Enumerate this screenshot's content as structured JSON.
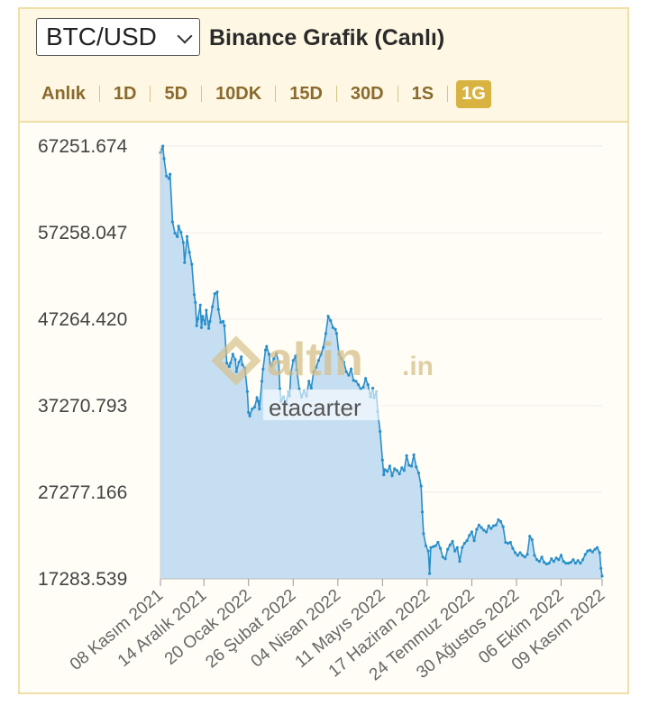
{
  "header": {
    "pair": "BTC/USD",
    "title": "Binance Grafik (Canlı)",
    "tabs": [
      {
        "label": "Anlık",
        "active": false
      },
      {
        "label": "1D",
        "active": false
      },
      {
        "label": "5D",
        "active": false
      },
      {
        "label": "10DK",
        "active": false
      },
      {
        "label": "15D",
        "active": false
      },
      {
        "label": "30D",
        "active": false
      },
      {
        "label": "1S",
        "active": false
      },
      {
        "label": "1G",
        "active": true
      }
    ]
  },
  "watermark": {
    "logo_text": "altin",
    "logo_suffix": ".in",
    "user_text": "etacarter",
    "logo_color": "#d6c08a"
  },
  "colors": {
    "line": "#2a8fc9",
    "fill": "#c5def2",
    "grid": "#ececec",
    "active_tab": "#d9b341"
  },
  "chart_data": {
    "type": "area",
    "y_ticks": [
      "67251.674",
      "57258.047",
      "47264.420",
      "37270.793",
      "27277.166",
      "17283.539"
    ],
    "ylim": [
      17283.539,
      67251.674
    ],
    "x_ticks": [
      {
        "label": "08 Kasım 2021",
        "day": 0
      },
      {
        "label": "14 Aralık 2021",
        "day": 36
      },
      {
        "label": "20 Ocak 2022",
        "day": 73
      },
      {
        "label": "26 Şubat 2022",
        "day": 110
      },
      {
        "label": "04 Nisan 2022",
        "day": 147
      },
      {
        "label": "11 Mayıs 2022",
        "day": 184
      },
      {
        "label": "17 Haziran 2022",
        "day": 221
      },
      {
        "label": "24 Temmuz 2022",
        "day": 258
      },
      {
        "label": "30 Ağustos 2022",
        "day": 295
      },
      {
        "label": "06 Ekim 2022",
        "day": 332
      },
      {
        "label": "09 Kasım 2022",
        "day": 366
      }
    ],
    "series": [
      {
        "points": [
          [
            0,
            66500
          ],
          [
            2,
            67251
          ],
          [
            3,
            65800
          ],
          [
            5,
            63800
          ],
          [
            7,
            63500
          ],
          [
            8,
            64000
          ],
          [
            10,
            58500
          ],
          [
            12,
            57200
          ],
          [
            14,
            56800
          ],
          [
            15,
            58000
          ],
          [
            17,
            57300
          ],
          [
            19,
            56100
          ],
          [
            20,
            53800
          ],
          [
            22,
            56800
          ],
          [
            24,
            55000
          ],
          [
            26,
            53600
          ],
          [
            28,
            50100
          ],
          [
            29,
            49200
          ],
          [
            30,
            46500
          ],
          [
            31,
            47300
          ],
          [
            33,
            48900
          ],
          [
            34,
            46300
          ],
          [
            35,
            47600
          ],
          [
            37,
            46700
          ],
          [
            38,
            48300
          ],
          [
            40,
            46200
          ],
          [
            41,
            47000
          ],
          [
            43,
            48700
          ],
          [
            45,
            50200
          ],
          [
            47,
            50400
          ],
          [
            48,
            48400
          ],
          [
            50,
            46900
          ],
          [
            52,
            47000
          ],
          [
            53,
            46500
          ],
          [
            55,
            42200
          ],
          [
            57,
            41800
          ],
          [
            58,
            42200
          ],
          [
            60,
            43200
          ],
          [
            62,
            42600
          ],
          [
            63,
            41200
          ],
          [
            65,
            42300
          ],
          [
            67,
            42900
          ],
          [
            68,
            42000
          ],
          [
            70,
            41600
          ],
          [
            72,
            38900
          ],
          [
            73,
            36500
          ],
          [
            74,
            36100
          ],
          [
            76,
            36900
          ],
          [
            78,
            37100
          ],
          [
            80,
            38200
          ],
          [
            81,
            37800
          ],
          [
            82,
            36900
          ],
          [
            84,
            40100
          ],
          [
            85,
            41500
          ],
          [
            87,
            43700
          ],
          [
            88,
            44100
          ],
          [
            90,
            43200
          ],
          [
            91,
            42100
          ],
          [
            92,
            41900
          ],
          [
            94,
            42700
          ],
          [
            96,
            43300
          ],
          [
            98,
            42300
          ],
          [
            99,
            39200
          ],
          [
            100,
            37800
          ],
          [
            102,
            38300
          ],
          [
            104,
            37400
          ],
          [
            106,
            38900
          ],
          [
            107,
            38400
          ],
          [
            108,
            41000
          ],
          [
            110,
            42500
          ],
          [
            112,
            43000
          ],
          [
            113,
            41400
          ],
          [
            115,
            39200
          ],
          [
            117,
            38300
          ],
          [
            119,
            39000
          ],
          [
            121,
            38400
          ],
          [
            123,
            40100
          ],
          [
            125,
            39300
          ],
          [
            127,
            41200
          ],
          [
            129,
            41700
          ],
          [
            131,
            42500
          ],
          [
            133,
            43200
          ],
          [
            135,
            44000
          ],
          [
            137,
            45600
          ],
          [
            139,
            47600
          ],
          [
            141,
            47100
          ],
          [
            143,
            46300
          ],
          [
            145,
            46100
          ],
          [
            146,
            45600
          ],
          [
            148,
            43200
          ],
          [
            150,
            42700
          ],
          [
            152,
            42300
          ],
          [
            154,
            41200
          ],
          [
            156,
            40800
          ],
          [
            158,
            41500
          ],
          [
            160,
            40200
          ],
          [
            162,
            40100
          ],
          [
            164,
            39700
          ],
          [
            166,
            39200
          ],
          [
            168,
            39400
          ],
          [
            170,
            40400
          ],
          [
            172,
            39700
          ],
          [
            174,
            38300
          ],
          [
            176,
            39300
          ],
          [
            177,
            38200
          ],
          [
            179,
            38900
          ],
          [
            180,
            36600
          ],
          [
            182,
            34300
          ],
          [
            184,
            31000
          ],
          [
            185,
            29300
          ],
          [
            186,
            29900
          ],
          [
            188,
            29700
          ],
          [
            190,
            30300
          ],
          [
            192,
            29200
          ],
          [
            194,
            30000
          ],
          [
            196,
            29800
          ],
          [
            198,
            29400
          ],
          [
            200,
            30100
          ],
          [
            202,
            29800
          ],
          [
            204,
            31500
          ],
          [
            206,
            30400
          ],
          [
            208,
            30300
          ],
          [
            210,
            31600
          ],
          [
            212,
            30200
          ],
          [
            214,
            29500
          ],
          [
            216,
            28000
          ],
          [
            217,
            25000
          ],
          [
            218,
            22500
          ],
          [
            220,
            21100
          ],
          [
            222,
            20500
          ],
          [
            223,
            17900
          ],
          [
            224,
            20900
          ],
          [
            226,
            21000
          ],
          [
            228,
            21100
          ],
          [
            230,
            21500
          ],
          [
            232,
            20800
          ],
          [
            234,
            19800
          ],
          [
            236,
            19600
          ],
          [
            238,
            20700
          ],
          [
            240,
            21200
          ],
          [
            242,
            21600
          ],
          [
            244,
            20500
          ],
          [
            246,
            20900
          ],
          [
            248,
            19300
          ],
          [
            250,
            20900
          ],
          [
            252,
            21400
          ],
          [
            254,
            21700
          ],
          [
            256,
            22300
          ],
          [
            258,
            22700
          ],
          [
            260,
            21700
          ],
          [
            262,
            23000
          ],
          [
            264,
            23500
          ],
          [
            266,
            23200
          ],
          [
            268,
            22900
          ],
          [
            270,
            22700
          ],
          [
            272,
            23400
          ],
          [
            274,
            23100
          ],
          [
            276,
            23400
          ],
          [
            278,
            23500
          ],
          [
            280,
            24100
          ],
          [
            282,
            23900
          ],
          [
            284,
            23300
          ],
          [
            286,
            21500
          ],
          [
            288,
            21400
          ],
          [
            290,
            21500
          ],
          [
            292,
            20800
          ],
          [
            294,
            20300
          ],
          [
            296,
            20000
          ],
          [
            298,
            20300
          ],
          [
            300,
            20000
          ],
          [
            302,
            19800
          ],
          [
            304,
            20100
          ],
          [
            306,
            22200
          ],
          [
            308,
            21800
          ],
          [
            310,
            20000
          ],
          [
            312,
            19500
          ],
          [
            314,
            19300
          ],
          [
            316,
            19800
          ],
          [
            318,
            19200
          ],
          [
            320,
            19000
          ],
          [
            322,
            19100
          ],
          [
            324,
            19600
          ],
          [
            326,
            19300
          ],
          [
            328,
            19700
          ],
          [
            330,
            19500
          ],
          [
            332,
            20000
          ],
          [
            334,
            19300
          ],
          [
            336,
            19100
          ],
          [
            338,
            19100
          ],
          [
            340,
            19200
          ],
          [
            342,
            19500
          ],
          [
            344,
            19100
          ],
          [
            346,
            19400
          ],
          [
            348,
            19100
          ],
          [
            350,
            19500
          ],
          [
            352,
            20100
          ],
          [
            354,
            20500
          ],
          [
            356,
            20600
          ],
          [
            358,
            20400
          ],
          [
            360,
            20700
          ],
          [
            362,
            20900
          ],
          [
            364,
            20300
          ],
          [
            365,
            18500
          ],
          [
            366,
            17600
          ]
        ]
      }
    ]
  }
}
